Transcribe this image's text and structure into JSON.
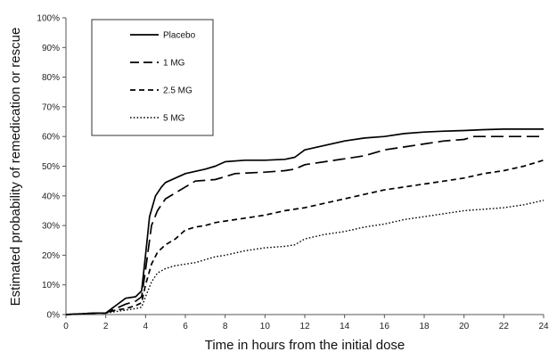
{
  "chart_data": {
    "type": "line",
    "title": "",
    "xlabel": "Time in hours from the initial dose",
    "ylabel": "Estimated probability of remedication or rescue",
    "xlim": [
      0,
      24
    ],
    "ylim": [
      0,
      100
    ],
    "x_ticks": [
      0,
      2,
      4,
      6,
      8,
      10,
      12,
      14,
      16,
      18,
      20,
      22,
      24
    ],
    "x_tick_labels": [
      "0",
      "2",
      "4",
      "6",
      "8",
      "10",
      "12",
      "14",
      "16",
      "18",
      "20",
      "22",
      "24"
    ],
    "y_ticks": [
      0,
      10,
      20,
      30,
      40,
      50,
      60,
      70,
      80,
      90,
      100
    ],
    "y_tick_labels": [
      "0%",
      "10%",
      "20%",
      "30%",
      "40%",
      "50%",
      "60%",
      "70%",
      "80%",
      "90%",
      "100%"
    ],
    "grid": false,
    "legend_position": "top-left",
    "series": [
      {
        "name": "Placebo",
        "style": "solid",
        "color": "#000000",
        "points": [
          [
            0,
            0
          ],
          [
            1.5,
            0.5
          ],
          [
            2,
            0.5
          ],
          [
            2.5,
            3
          ],
          [
            3,
            5.5
          ],
          [
            3.5,
            6
          ],
          [
            3.8,
            8
          ],
          [
            4.0,
            20
          ],
          [
            4.2,
            33
          ],
          [
            4.5,
            40
          ],
          [
            4.8,
            43
          ],
          [
            5,
            44.5
          ],
          [
            5.5,
            46
          ],
          [
            6,
            47.5
          ],
          [
            7,
            49
          ],
          [
            7.5,
            50
          ],
          [
            8,
            51.5
          ],
          [
            9,
            52
          ],
          [
            10,
            52
          ],
          [
            11,
            52.3
          ],
          [
            11.5,
            53
          ],
          [
            12,
            55.5
          ],
          [
            13,
            57
          ],
          [
            14,
            58.5
          ],
          [
            15,
            59.5
          ],
          [
            16,
            60
          ],
          [
            17,
            61
          ],
          [
            18,
            61.5
          ],
          [
            19,
            61.8
          ],
          [
            20,
            62
          ],
          [
            21,
            62.3
          ],
          [
            22,
            62.5
          ],
          [
            23,
            62.5
          ],
          [
            24,
            62.5
          ]
        ]
      },
      {
        "name": "1 MG",
        "style": "long-dash",
        "color": "#000000",
        "points": [
          [
            0,
            0
          ],
          [
            1.5,
            0.5
          ],
          [
            2,
            0.5
          ],
          [
            2.5,
            2
          ],
          [
            3,
            3.5
          ],
          [
            3.5,
            4.5
          ],
          [
            3.8,
            6
          ],
          [
            4.0,
            15
          ],
          [
            4.3,
            30
          ],
          [
            4.6,
            35
          ],
          [
            5,
            39
          ],
          [
            5.5,
            41
          ],
          [
            6,
            43
          ],
          [
            6.5,
            45
          ],
          [
            7.5,
            45.5
          ],
          [
            8,
            46.5
          ],
          [
            8.5,
            47.5
          ],
          [
            10,
            48
          ],
          [
            11,
            48.5
          ],
          [
            11.5,
            49
          ],
          [
            12,
            50.5
          ],
          [
            13,
            51.5
          ],
          [
            14,
            52.5
          ],
          [
            15,
            53.5
          ],
          [
            16,
            55.5
          ],
          [
            17,
            56.5
          ],
          [
            18,
            57.5
          ],
          [
            19,
            58.5
          ],
          [
            20,
            59
          ],
          [
            20.5,
            60
          ],
          [
            21,
            60
          ],
          [
            24,
            60
          ]
        ]
      },
      {
        "name": "2.5 MG",
        "style": "short-dash",
        "color": "#000000",
        "points": [
          [
            0,
            0
          ],
          [
            1.5,
            0.5
          ],
          [
            2,
            0.5
          ],
          [
            2.5,
            1.5
          ],
          [
            3,
            2
          ],
          [
            3.5,
            3
          ],
          [
            3.8,
            4
          ],
          [
            4.0,
            10
          ],
          [
            4.3,
            17
          ],
          [
            4.6,
            21
          ],
          [
            5,
            23.5
          ],
          [
            5.5,
            25.5
          ],
          [
            6,
            28.5
          ],
          [
            6.5,
            29.5
          ],
          [
            7,
            30
          ],
          [
            7.5,
            31
          ],
          [
            8,
            31.5
          ],
          [
            9,
            32.5
          ],
          [
            10,
            33.5
          ],
          [
            11,
            35
          ],
          [
            12,
            36
          ],
          [
            13,
            37.5
          ],
          [
            14,
            39
          ],
          [
            15,
            40.5
          ],
          [
            16,
            42
          ],
          [
            17,
            43
          ],
          [
            18,
            44
          ],
          [
            19,
            45
          ],
          [
            20,
            46
          ],
          [
            21,
            47.5
          ],
          [
            22,
            48.5
          ],
          [
            23,
            50
          ],
          [
            24,
            52
          ]
        ]
      },
      {
        "name": "5 MG",
        "style": "dotted",
        "color": "#000000",
        "points": [
          [
            0,
            0
          ],
          [
            1.5,
            0.5
          ],
          [
            2,
            0.5
          ],
          [
            2.5,
            1
          ],
          [
            3,
            1.5
          ],
          [
            3.5,
            2
          ],
          [
            3.8,
            2.5
          ],
          [
            4.0,
            6
          ],
          [
            4.3,
            11
          ],
          [
            4.6,
            14
          ],
          [
            5,
            15.5
          ],
          [
            5.5,
            16.5
          ],
          [
            6,
            17
          ],
          [
            6.5,
            17.5
          ],
          [
            7,
            18.5
          ],
          [
            7.5,
            19.5
          ],
          [
            8,
            20
          ],
          [
            9,
            21.5
          ],
          [
            10,
            22.5
          ],
          [
            11,
            23
          ],
          [
            11.5,
            23.5
          ],
          [
            12,
            25.5
          ],
          [
            13,
            27
          ],
          [
            14,
            28
          ],
          [
            15,
            29.5
          ],
          [
            16,
            30.5
          ],
          [
            17,
            32
          ],
          [
            18,
            33
          ],
          [
            19,
            34
          ],
          [
            20,
            35
          ],
          [
            21,
            35.5
          ],
          [
            22,
            36
          ],
          [
            23,
            37
          ],
          [
            24,
            38.5
          ]
        ]
      }
    ]
  }
}
